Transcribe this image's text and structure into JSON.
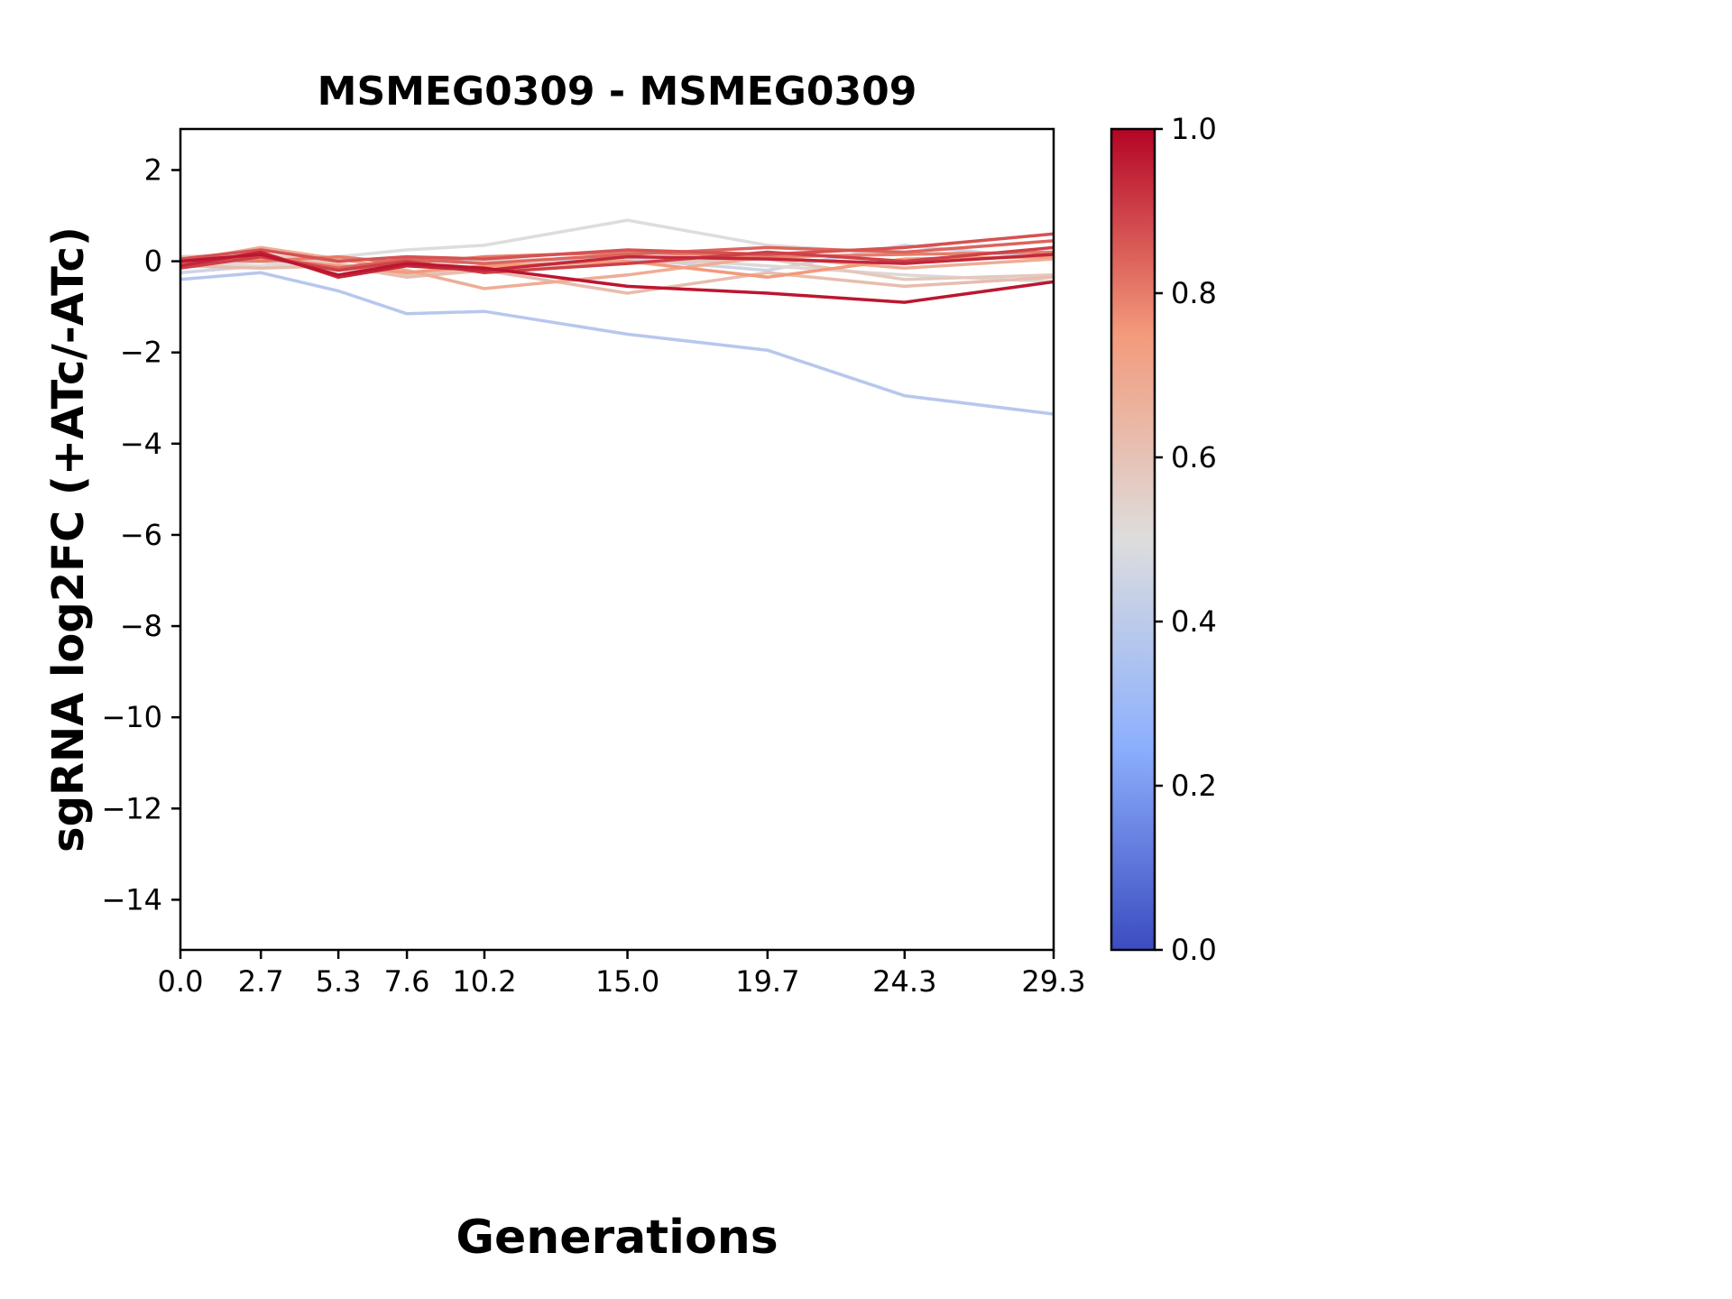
{
  "title": "MSMEG0309 - MSMEG0309",
  "chart_data": {
    "type": "line",
    "title": "MSMEG0309 - MSMEG0309",
    "xlabel": "Generations",
    "ylabel": "sgRNA log2FC (+ATc/-ATc)",
    "x": [
      0.0,
      2.7,
      5.3,
      7.6,
      10.2,
      15.0,
      19.7,
      24.3,
      29.3
    ],
    "xtick_labels": [
      "0.0",
      "2.7",
      "5.3",
      "7.6",
      "10.2",
      "15.0",
      "19.7",
      "24.3",
      "29.3"
    ],
    "ytick_values": [
      2,
      0,
      -2,
      -4,
      -6,
      -8,
      -10,
      -12,
      -14
    ],
    "ytick_labels": [
      "2",
      "0",
      "−2",
      "−4",
      "−6",
      "−8",
      "−10",
      "−12",
      "−14"
    ],
    "xlim": [
      0.0,
      29.3
    ],
    "ylim": [
      -15.1,
      2.9
    ],
    "grid": false,
    "series": [
      {
        "color_value": 0.38,
        "values": [
          -0.4,
          -0.25,
          -0.65,
          -1.15,
          -1.1,
          -1.6,
          -1.95,
          -2.95,
          -3.35
        ]
      },
      {
        "color_value": 0.45,
        "values": [
          -0.25,
          -0.1,
          0.0,
          0.1,
          0.0,
          0.05,
          -0.2,
          0.35,
          0.05
        ]
      },
      {
        "color_value": 0.5,
        "values": [
          -0.05,
          -0.1,
          0.1,
          0.25,
          0.35,
          0.9,
          0.35,
          0.15,
          0.2
        ]
      },
      {
        "color_value": 0.52,
        "values": [
          -0.1,
          0.0,
          -0.2,
          -0.1,
          0.0,
          0.1,
          -0.1,
          -0.3,
          -0.45
        ]
      },
      {
        "color_value": 0.58,
        "values": [
          0.1,
          0.15,
          -0.05,
          -0.3,
          -0.15,
          -0.05,
          0.05,
          -0.4,
          -0.3
        ]
      },
      {
        "color_value": 0.62,
        "values": [
          -0.1,
          -0.15,
          -0.1,
          -0.35,
          -0.2,
          -0.7,
          -0.25,
          -0.55,
          -0.35
        ]
      },
      {
        "color_value": 0.68,
        "values": [
          0.0,
          0.3,
          0.05,
          -0.2,
          -0.6,
          -0.3,
          0.1,
          -0.15,
          0.05
        ]
      },
      {
        "color_value": 0.75,
        "values": [
          0.0,
          0.05,
          -0.1,
          -0.25,
          -0.1,
          0.0,
          -0.35,
          0.05,
          0.1
        ]
      },
      {
        "color_value": 0.8,
        "values": [
          0.05,
          0.0,
          0.1,
          -0.05,
          0.1,
          0.2,
          0.1,
          0.15,
          0.2
        ]
      },
      {
        "color_value": 0.84,
        "values": [
          -0.05,
          0.1,
          -0.15,
          0.05,
          -0.05,
          0.15,
          0.3,
          0.2,
          0.45
        ]
      },
      {
        "color_value": 0.87,
        "values": [
          0.05,
          0.25,
          0.0,
          0.1,
          0.05,
          0.25,
          0.15,
          0.3,
          0.6
        ]
      },
      {
        "color_value": 0.9,
        "values": [
          -0.15,
          0.1,
          -0.2,
          0.0,
          -0.25,
          -0.05,
          0.2,
          0.0,
          0.3
        ]
      },
      {
        "color_value": 0.94,
        "values": [
          -0.1,
          0.2,
          -0.35,
          -0.1,
          -0.2,
          0.1,
          0.05,
          -0.05,
          0.15
        ]
      },
      {
        "color_value": 0.97,
        "values": [
          0.0,
          0.15,
          -0.3,
          -0.05,
          -0.15,
          -0.55,
          -0.7,
          -0.9,
          -0.45
        ]
      }
    ],
    "colorbar": {
      "cmap": "coolwarm",
      "range": [
        0.0,
        1.0
      ],
      "tick_values": [
        0.0,
        0.2,
        0.4,
        0.6,
        0.8,
        1.0
      ],
      "tick_labels": [
        "0.0",
        "0.2",
        "0.4",
        "0.6",
        "0.8",
        "1.0"
      ],
      "position": "right"
    }
  },
  "colors": {
    "background": "#ffffff",
    "axes": "#000000",
    "text": "#000000",
    "cmap_low": "#3b4cc0",
    "cmap_mid": "#dddddd",
    "cmap_high": "#b40426"
  }
}
